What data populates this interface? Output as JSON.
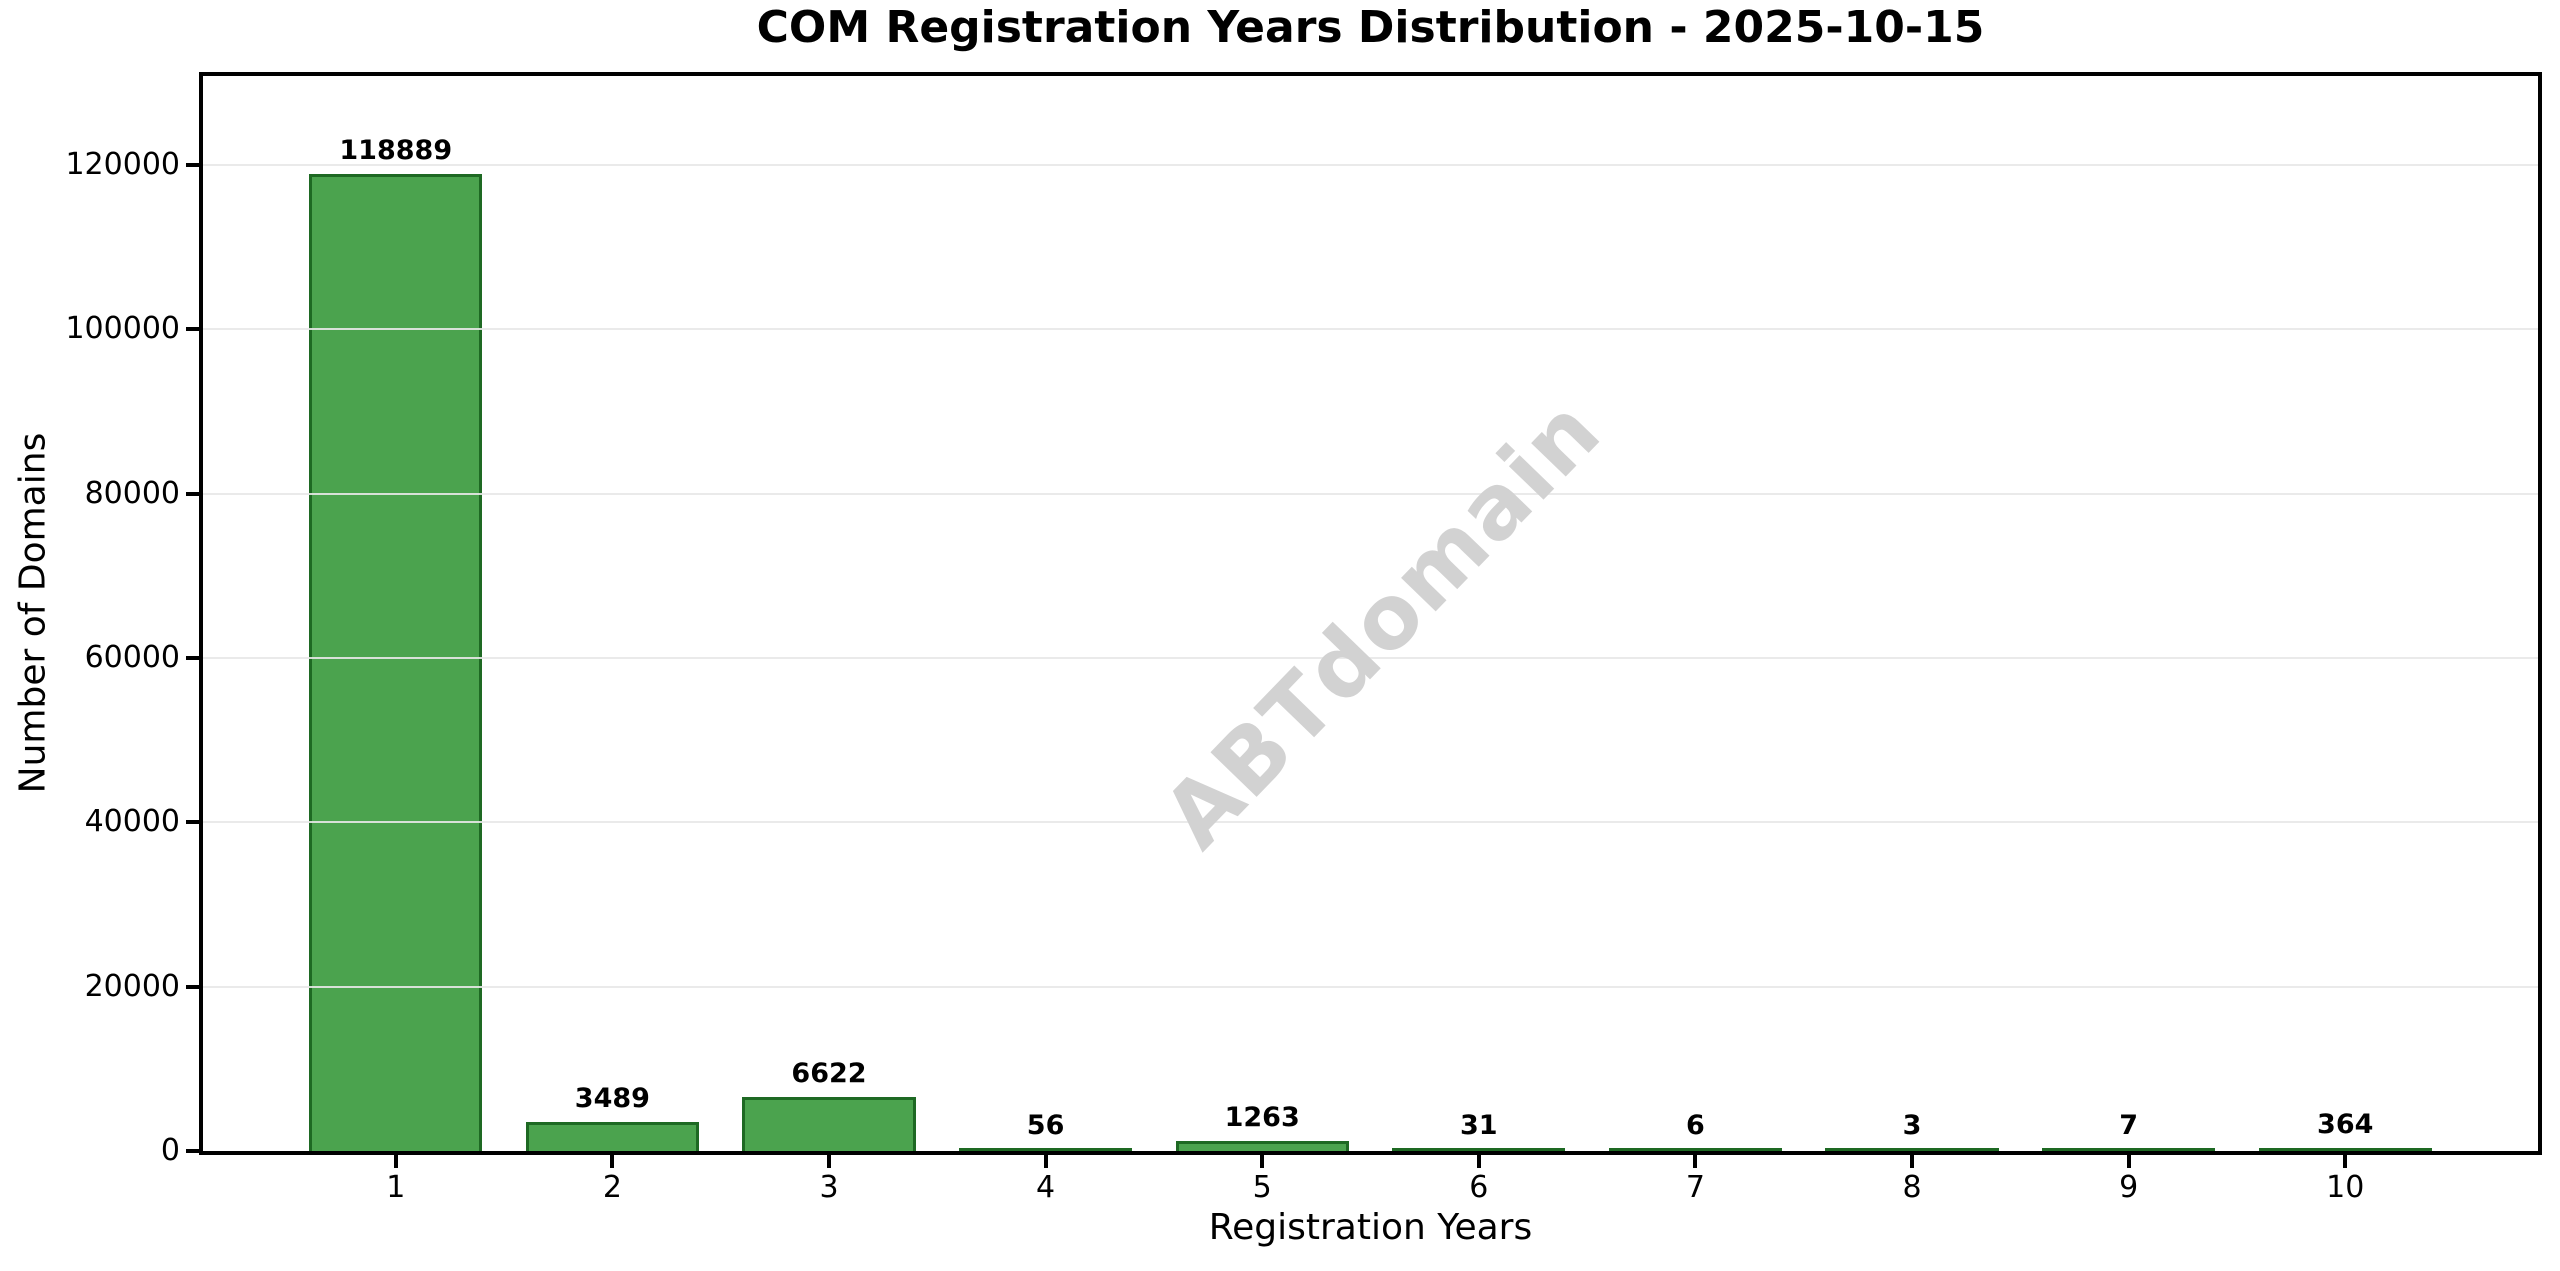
{
  "figure": {
    "title": "COM Registration Years Distribution - 2025-10-15",
    "watermark": "ABTdomain"
  },
  "chart_data": {
    "type": "bar",
    "title": "COM Registration Years Distribution - 2025-10-15",
    "xlabel": "Registration Years",
    "ylabel": "Number of Domains",
    "categories": [
      "1",
      "2",
      "3",
      "4",
      "5",
      "6",
      "7",
      "8",
      "9",
      "10"
    ],
    "values": [
      118889,
      3489,
      6622,
      56,
      1263,
      31,
      6,
      3,
      7,
      364
    ],
    "bar_labels": [
      "118889",
      "3489",
      "6622",
      "56",
      "1263",
      "31",
      "6",
      "3",
      "7",
      "364"
    ],
    "yticks": [
      0,
      20000,
      40000,
      60000,
      80000,
      100000,
      120000
    ],
    "ytick_labels": [
      "0",
      "20000",
      "40000",
      "60000",
      "80000",
      "100000",
      "120000"
    ],
    "ylim": [
      0,
      130832
    ],
    "xlim": [
      0.11,
      10.89
    ],
    "bar_width": 0.8,
    "grid": "horizontal-over-bars",
    "legend": "none",
    "watermark": "ABTdomain",
    "colors": {
      "bar_fill": "#4ba34e",
      "bar_edge": "#1e6923",
      "grid": "#e8e8e8",
      "watermark": "#d2d2d2",
      "spine": "#000000",
      "background": "#ffffff"
    }
  }
}
